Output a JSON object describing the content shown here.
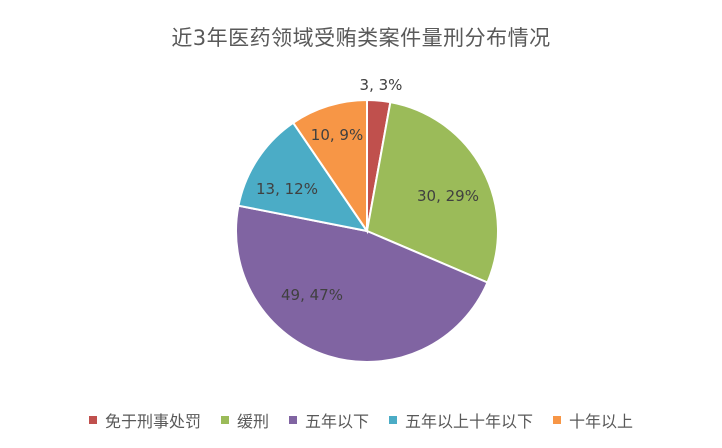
{
  "chart_data": {
    "type": "pie",
    "title": "近3年医药领域受贿类案件量刑分布情况",
    "categories": [
      "免于刑事处罚",
      "缓刑",
      "五年以下",
      "五年以上十年以下",
      "十年以上"
    ],
    "values": [
      3,
      30,
      49,
      13,
      10
    ],
    "percents": [
      "3%",
      "29%",
      "47%",
      "12%",
      "9%"
    ],
    "data_labels": [
      "3, 3%",
      "30, 29%",
      "49, 47%",
      "13, 12%",
      "10, 9%"
    ],
    "colors": [
      "#c0504d",
      "#9bbb59",
      "#8064a2",
      "#4bacc6",
      "#f79646"
    ],
    "legend_position": "bottom",
    "start_angle_deg": 0,
    "direction": "clockwise"
  }
}
